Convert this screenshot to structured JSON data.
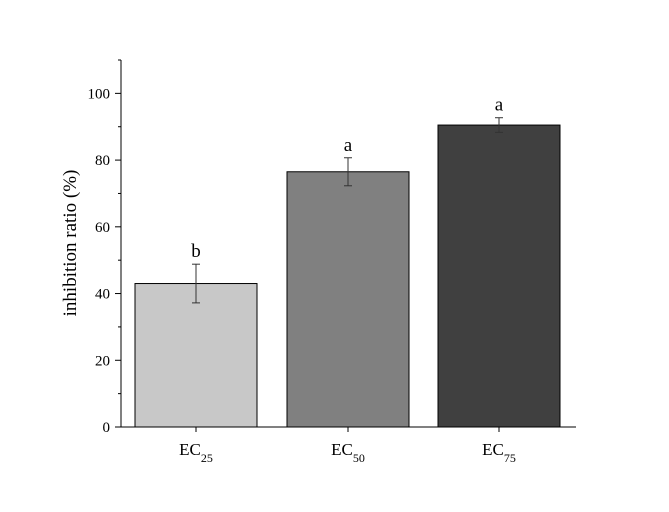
{
  "chart_data": {
    "type": "bar",
    "categories": [
      {
        "base": "EC",
        "sub": "25"
      },
      {
        "base": "EC",
        "sub": "50"
      },
      {
        "base": "EC",
        "sub": "75"
      }
    ],
    "values": [
      43,
      76.5,
      90.5
    ],
    "errors": [
      5.8,
      4.2,
      2.2
    ],
    "significance": [
      "b",
      "a",
      "a"
    ],
    "colors": [
      "#c8c8c8",
      "#808080",
      "#404040"
    ],
    "ylabel": "inhibition ratio (%)",
    "xlabel": "",
    "ylim": [
      0,
      110
    ],
    "yticks": [
      0,
      20,
      40,
      60,
      80,
      100
    ],
    "grid": false,
    "legend": false
  }
}
